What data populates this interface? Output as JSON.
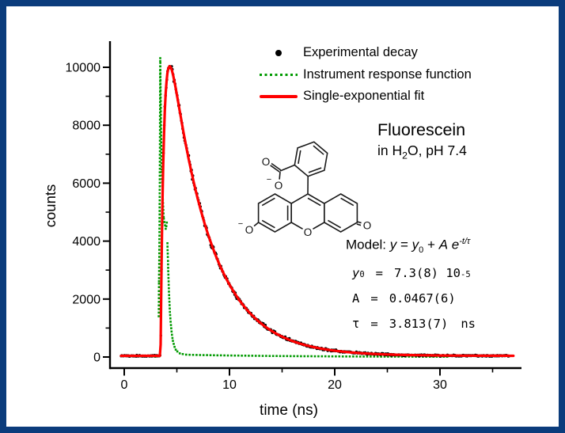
{
  "frame": {
    "border_color": "#0b3c7c",
    "background_color": "#ffffff"
  },
  "legend": {
    "items": [
      {
        "label": "Experimental decay",
        "marker": "black-dot",
        "color": "#000000"
      },
      {
        "label": "Instrument response function",
        "marker": "green-dotted-line",
        "color": "#009a00"
      },
      {
        "label": "Single-exponential fit",
        "marker": "red-solid-line",
        "color": "#ff0000"
      }
    ]
  },
  "sample": {
    "title": "Fluorescein",
    "subtitle_pre": "in H",
    "subtitle_sub": "2",
    "subtitle_post": "O, pH 7.4"
  },
  "model": {
    "prefix": "Model:",
    "lhs": "y",
    "equals": "=",
    "y0_base": "y",
    "y0_sub": "0",
    "plus": "+",
    "amplitude": "A",
    "euler": "e",
    "exponent": "-t/τ",
    "params": [
      {
        "symbol": "y",
        "sub": "0",
        "equals": "=",
        "value": "7.3(8) 10",
        "sup": "-5",
        "unit": ""
      },
      {
        "symbol": "A",
        "sub": "",
        "equals": "=",
        "value": "0.0467(6)",
        "sup": "",
        "unit": ""
      },
      {
        "symbol": "τ",
        "sub": "",
        "equals": "=",
        "value": "3.813(7)",
        "sup": "",
        "unit": "ns"
      }
    ]
  },
  "axes": {
    "xlabel": "time (ns)",
    "ylabel": "counts",
    "x_major_ticks": [
      0,
      10,
      20,
      30
    ],
    "x_minor_ticks": [
      5,
      15,
      25,
      35
    ],
    "y_major_ticks": [
      0,
      2000,
      4000,
      6000,
      8000,
      10000
    ],
    "y_minor_ticks": [
      1000,
      3000,
      5000,
      7000,
      9000
    ]
  },
  "molecule": {
    "name": "fluorescein (dianion)",
    "labels": {
      "bridge_o": "O",
      "phenolate_o": "O",
      "phenolate_charge": "−",
      "ketone_o": "O",
      "carboxyl_o_top": "O",
      "carboxyl_o_bottom": "O",
      "carboxyl_charge": "−"
    }
  },
  "chart_data": {
    "type": "scatter",
    "title": "",
    "xlabel": "time (ns)",
    "ylabel": "counts",
    "xlim": [
      -1.35,
      37.7
    ],
    "ylim": [
      -380,
      10900
    ],
    "x_major_ticks": [
      0,
      10,
      20,
      30
    ],
    "x_minor_ticks": [
      5,
      15,
      25,
      35
    ],
    "y_major_ticks": [
      0,
      2000,
      4000,
      6000,
      8000,
      10000
    ],
    "y_minor_ticks": [
      1000,
      3000,
      5000,
      7000,
      9000
    ],
    "series": [
      {
        "name": "Experimental decay",
        "type": "scatter",
        "color": "#000000",
        "model": {
          "baseline_counts": 40,
          "amplitude_counts": 13700,
          "onset_ns": 3.45,
          "rise_tau_ns": 0.35,
          "decay_tau_ns": 3.813,
          "t_start_ns": -0.3,
          "t_end_ns": 36.6,
          "dt_ns": 0.065
        },
        "key_points": [
          [
            0,
            40
          ],
          [
            3.4,
            40
          ],
          [
            3.6,
            4700
          ],
          [
            4.4,
            10050
          ],
          [
            6,
            6550
          ],
          [
            8,
            3870
          ],
          [
            10,
            2530
          ],
          [
            15,
            690
          ],
          [
            20,
            220
          ],
          [
            25,
            85
          ],
          [
            30,
            55
          ],
          [
            36.5,
            42
          ]
        ]
      },
      {
        "name": "Instrument response function",
        "type": "dotted",
        "color": "#009a00",
        "points": [
          [
            2.95,
            12
          ],
          [
            3.15,
            40
          ],
          [
            3.3,
            2500
          ],
          [
            3.42,
            10350
          ],
          [
            3.55,
            6500
          ],
          [
            3.75,
            4800
          ],
          [
            3.95,
            4400
          ],
          [
            4.05,
            4650
          ],
          [
            4.15,
            3400
          ],
          [
            4.35,
            1500
          ],
          [
            4.6,
            600
          ],
          [
            4.9,
            250
          ],
          [
            5.3,
            120
          ],
          [
            5.9,
            80
          ],
          [
            7,
            70
          ],
          [
            10,
            52
          ],
          [
            14,
            36
          ],
          [
            18,
            26
          ],
          [
            22,
            18
          ],
          [
            26,
            13
          ],
          [
            31,
            10
          ]
        ]
      },
      {
        "name": "Single-exponential fit",
        "type": "line",
        "color": "#ff0000",
        "model": {
          "baseline_counts": 40,
          "amplitude_counts": 13700,
          "onset_ns": 3.45,
          "rise_tau_ns": 0.35,
          "decay_tau_ns": 3.813,
          "t_start_ns": -0.3,
          "t_end_ns": 37.0
        },
        "fit_results": {
          "y0": "7.3(8)e-5",
          "A": "0.0467(6)",
          "tau_ns": "3.813(7)"
        }
      }
    ]
  }
}
